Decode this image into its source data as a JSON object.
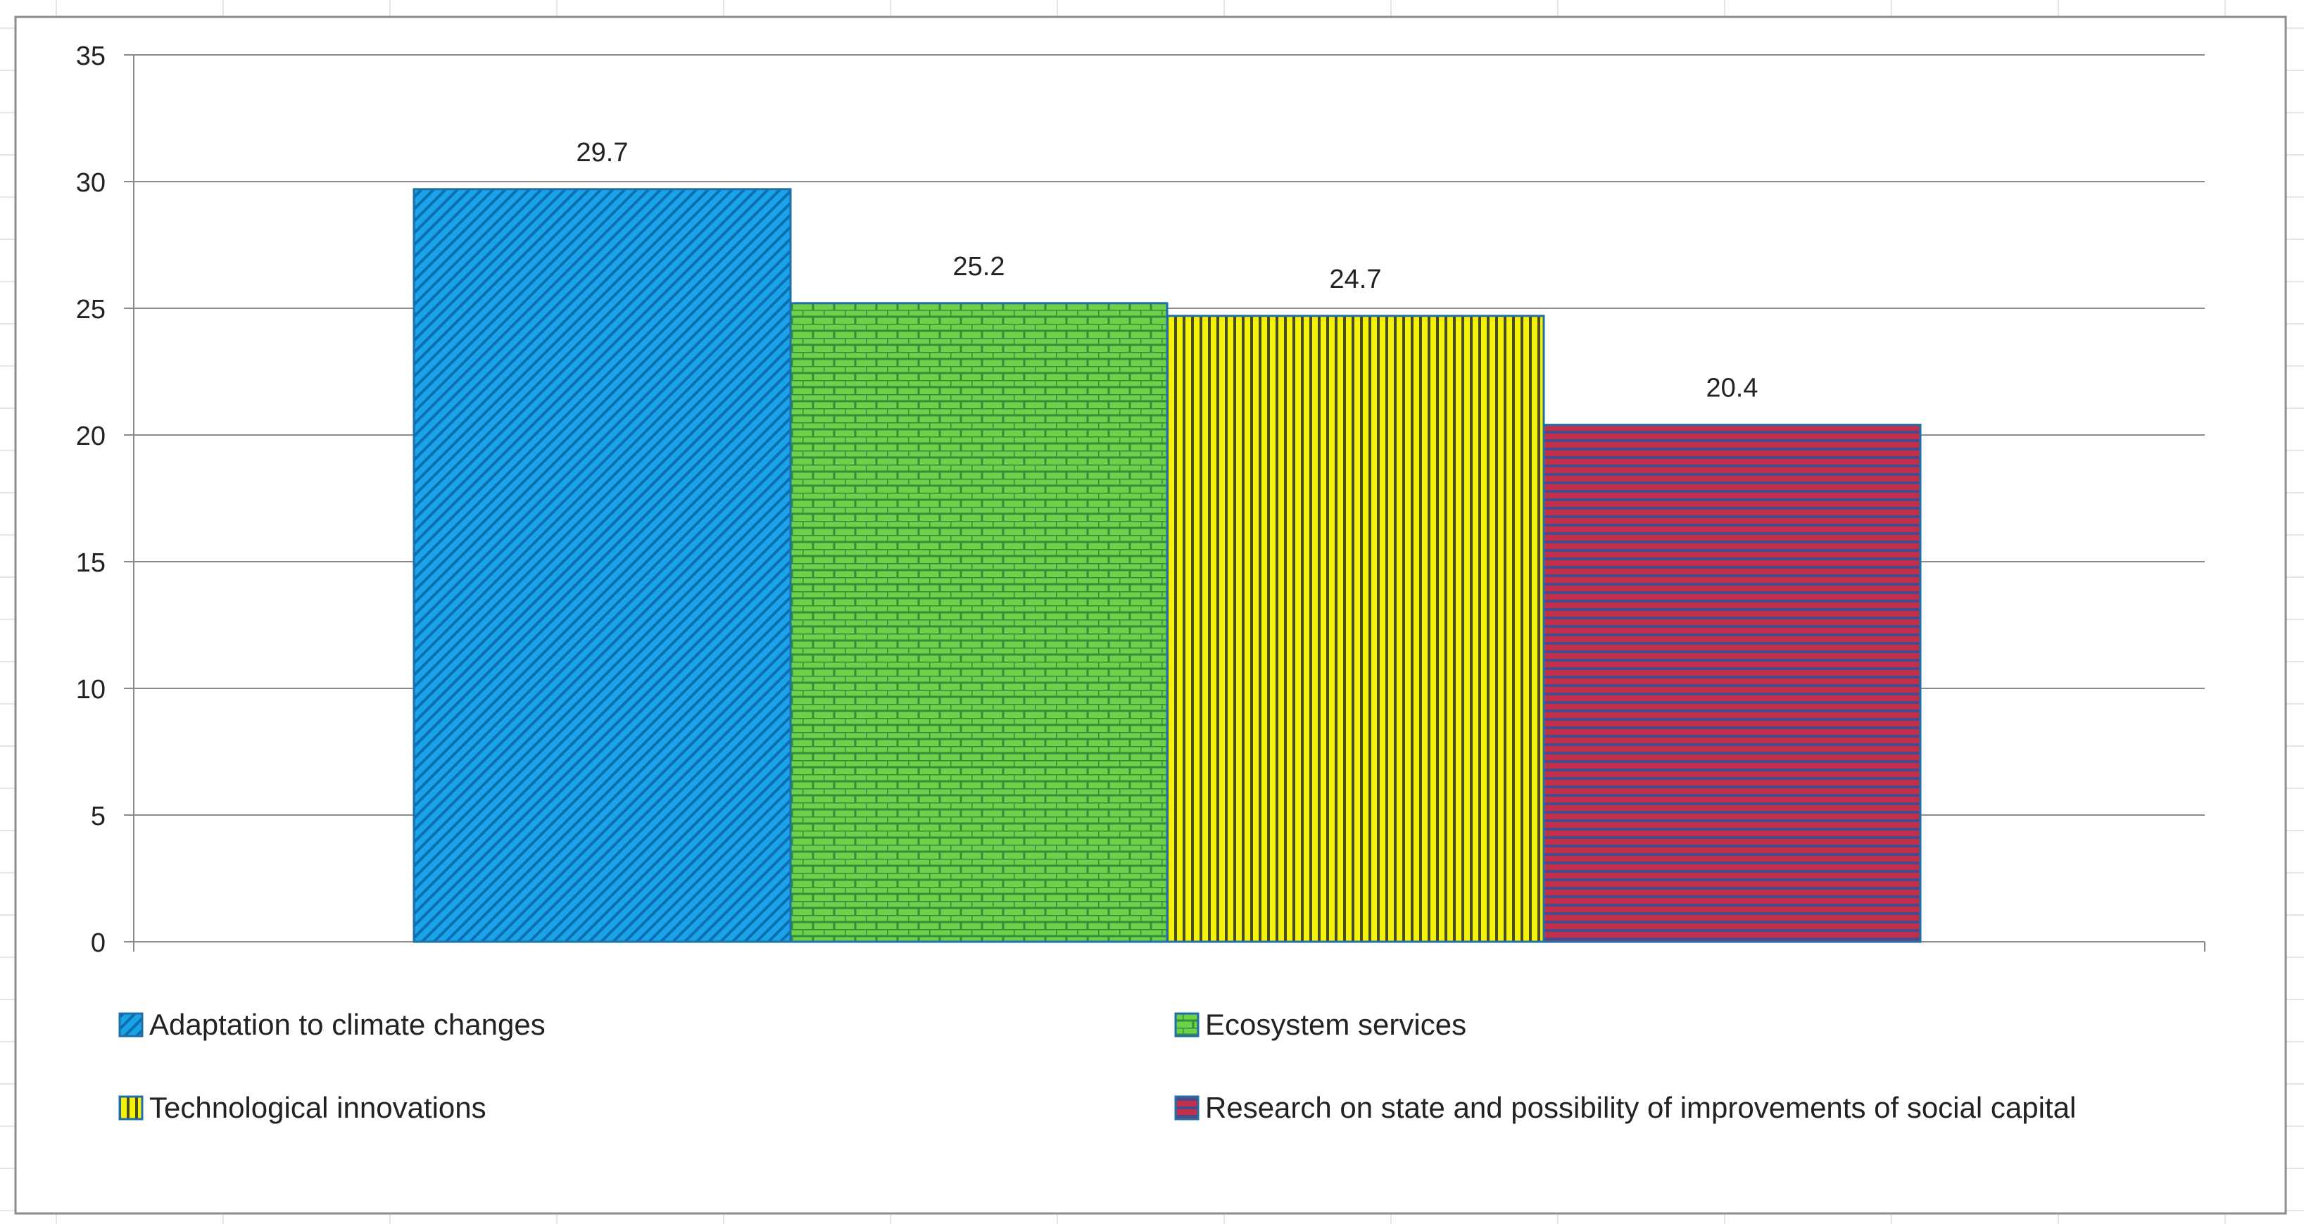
{
  "chart_data": {
    "type": "bar",
    "title": "",
    "xlabel": "",
    "ylabel": "",
    "ylim": [
      0,
      35
    ],
    "yticks": [
      0,
      5,
      10,
      15,
      20,
      25,
      30,
      35
    ],
    "grid": true,
    "legend_position": "bottom",
    "series": [
      {
        "name": "Adaptation to climate changes",
        "value": 29.7,
        "value_label": "29.7",
        "color": "#1aa3e8",
        "pattern": "diagonal"
      },
      {
        "name": "Ecosystem services",
        "value": 25.2,
        "value_label": "25.2",
        "color": "#6fd04a",
        "pattern": "brick"
      },
      {
        "name": "Technological innovations",
        "value": 24.7,
        "value_label": "24.7",
        "color": "#f4f20a",
        "pattern": "vertical"
      },
      {
        "name": "Research on state and possibility of improvements of social capital",
        "value": 20.4,
        "value_label": "20.4",
        "color": "#c0304a",
        "pattern": "horizontal"
      }
    ]
  }
}
